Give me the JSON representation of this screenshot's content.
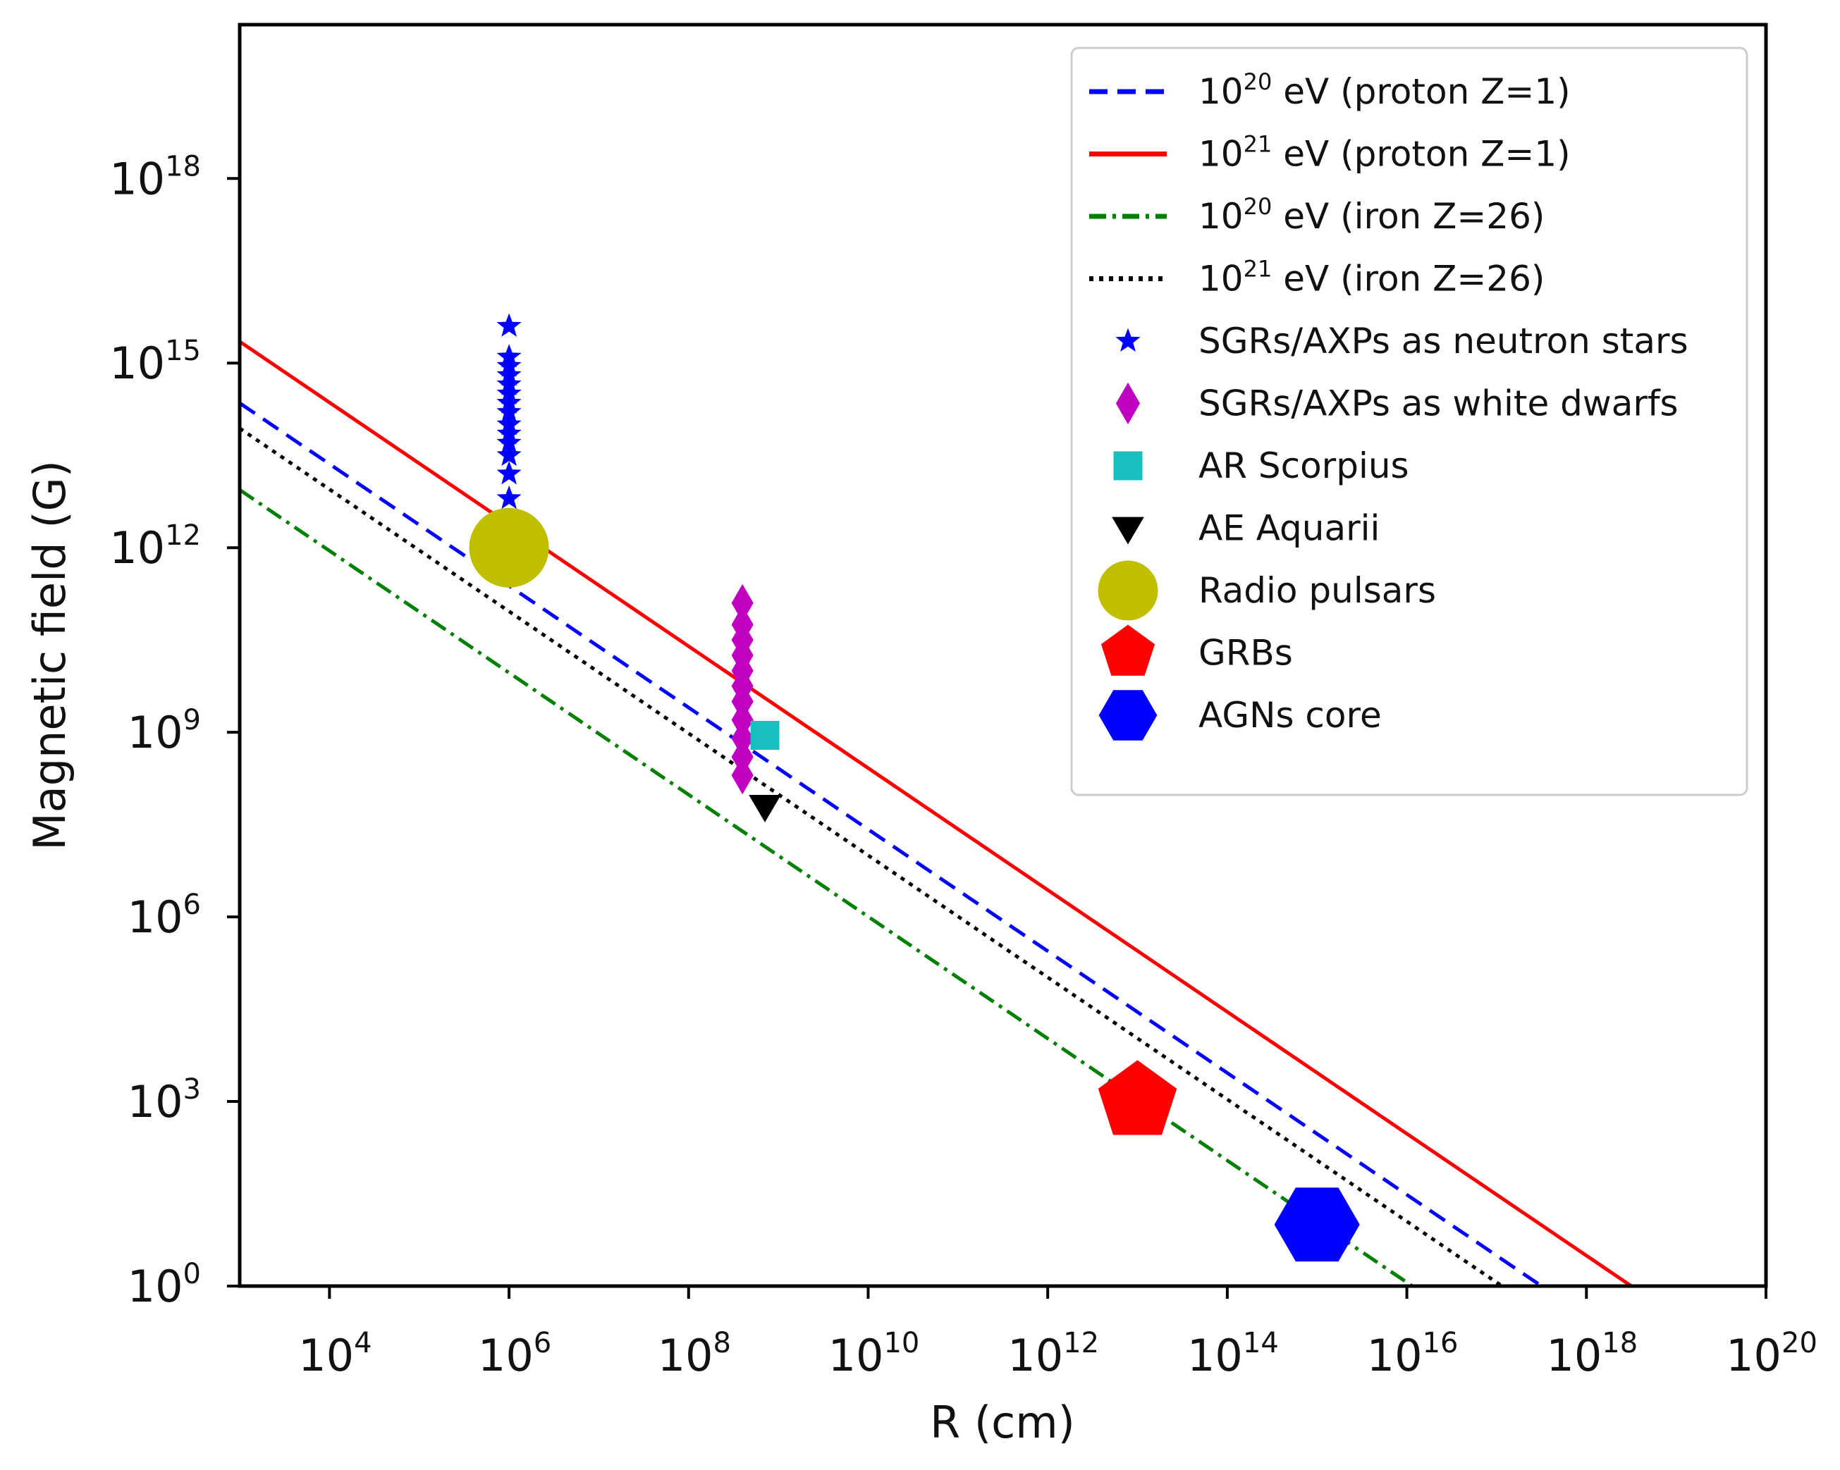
{
  "chart_data": {
    "type": "scatter",
    "title": "",
    "xlabel": "R (cm)",
    "ylabel": "Magnetic field (G)",
    "xscale": "log",
    "yscale": "log",
    "xlim_log10": [
      3,
      20
    ],
    "ylim_log10": [
      0,
      20.5
    ],
    "grid": false,
    "legend_position": "top-right",
    "x_ticks": [
      {
        "base": "10",
        "exp": "4",
        "log10": 4
      },
      {
        "base": "10",
        "exp": "6",
        "log10": 6
      },
      {
        "base": "10",
        "exp": "8",
        "log10": 8
      },
      {
        "base": "10",
        "exp": "10",
        "log10": 10
      },
      {
        "base": "10",
        "exp": "12",
        "log10": 12
      },
      {
        "base": "10",
        "exp": "14",
        "log10": 14
      },
      {
        "base": "10",
        "exp": "16",
        "log10": 16
      },
      {
        "base": "10",
        "exp": "18",
        "log10": 18
      },
      {
        "base": "10",
        "exp": "20",
        "log10": 20
      }
    ],
    "y_ticks": [
      {
        "base": "10",
        "exp": "0",
        "log10": 0
      },
      {
        "base": "10",
        "exp": "3",
        "log10": 3
      },
      {
        "base": "10",
        "exp": "6",
        "log10": 6
      },
      {
        "base": "10",
        "exp": "9",
        "log10": 9
      },
      {
        "base": "10",
        "exp": "12",
        "log10": 12
      },
      {
        "base": "10",
        "exp": "15",
        "log10": 15
      },
      {
        "base": "10",
        "exp": "18",
        "log10": 18
      }
    ],
    "lines": [
      {
        "name": "proton-1e20",
        "label_base": "10",
        "label_exp": "20",
        "label_rest": " eV (proton Z=1)",
        "style": "dashed",
        "color": "#0000ff",
        "x_log10": [
          3,
          17.5
        ],
        "y_log10": [
          14.35,
          0
        ]
      },
      {
        "name": "proton-1e21",
        "label_base": "10",
        "label_exp": "21",
        "label_rest": " eV (proton Z=1)",
        "style": "solid",
        "color": "#ff0000",
        "x_log10": [
          3,
          18.5
        ],
        "y_log10": [
          15.35,
          0
        ]
      },
      {
        "name": "iron-1e20",
        "label_base": "10",
        "label_exp": "20",
        "label_rest": " eV (iron Z=26)",
        "style": "dashdot",
        "color": "#008000",
        "x_log10": [
          3,
          16.06
        ],
        "y_log10": [
          12.94,
          0
        ]
      },
      {
        "name": "iron-1e21",
        "label_base": "10",
        "label_exp": "21",
        "label_rest": " eV (iron Z=26)",
        "style": "dotted",
        "color": "#000000",
        "x_log10": [
          3,
          17.06
        ],
        "y_log10": [
          13.94,
          0
        ]
      }
    ],
    "markers": [
      {
        "name": "sgr-neutron-stars",
        "label": "SGRs/AXPs as neutron stars",
        "shape": "star",
        "color": "#0000ff",
        "points": [
          [
            6,
            15.6
          ],
          [
            6,
            15.1
          ],
          [
            6,
            14.95
          ],
          [
            6,
            14.8
          ],
          [
            6,
            14.65
          ],
          [
            6,
            14.5
          ],
          [
            6,
            14.35
          ],
          [
            6,
            14.2
          ],
          [
            6,
            14.0
          ],
          [
            6,
            13.85
          ],
          [
            6,
            13.7
          ],
          [
            6,
            13.5
          ],
          [
            6,
            13.2
          ],
          [
            6,
            12.8
          ]
        ]
      },
      {
        "name": "sgr-white-dwarfs",
        "label": "SGRs/AXPs as white dwarfs",
        "shape": "diamond",
        "color": "#c000c0",
        "points": [
          [
            8.6,
            11.1
          ],
          [
            8.6,
            10.75
          ],
          [
            8.6,
            10.5
          ],
          [
            8.6,
            10.25
          ],
          [
            8.6,
            10.0
          ],
          [
            8.6,
            9.75
          ],
          [
            8.6,
            9.5
          ],
          [
            8.6,
            9.2
          ],
          [
            8.6,
            8.9
          ],
          [
            8.6,
            8.6
          ],
          [
            8.6,
            8.3
          ]
        ]
      },
      {
        "name": "ar-scorpius",
        "label": "AR Scorpius",
        "shape": "square",
        "color": "#17bfbf",
        "points": [
          [
            8.85,
            8.95
          ]
        ]
      },
      {
        "name": "ae-aquarii",
        "label": "AE Aquarii",
        "shape": "triangle-down",
        "color": "#000000",
        "points": [
          [
            8.85,
            7.8
          ]
        ]
      },
      {
        "name": "radio-pulsars",
        "label": "Radio pulsars",
        "shape": "circle",
        "color": "#bfbf00",
        "points": [
          [
            6,
            12
          ]
        ]
      },
      {
        "name": "grbs",
        "label": "GRBs",
        "shape": "pentagon",
        "color": "#ff0000",
        "points": [
          [
            13,
            3
          ]
        ]
      },
      {
        "name": "agns-core",
        "label": "AGNs core",
        "shape": "hexagon",
        "color": "#0000ff",
        "points": [
          [
            15,
            1
          ]
        ]
      }
    ]
  }
}
